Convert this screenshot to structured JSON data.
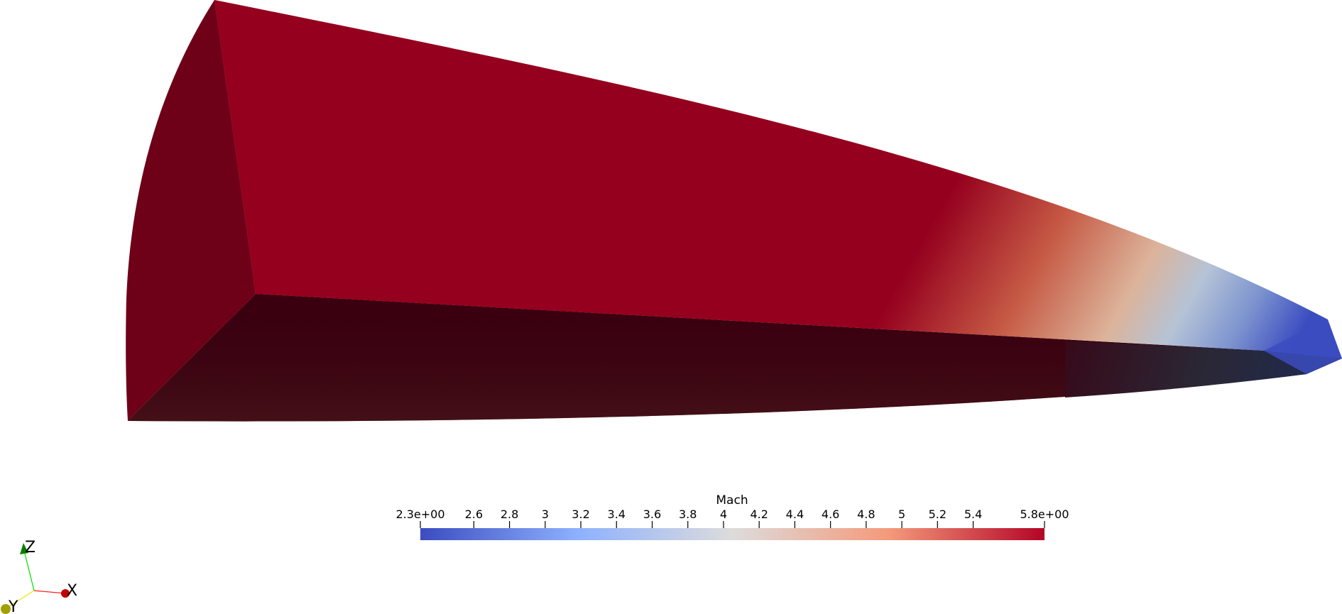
{
  "scalar_bar": {
    "title": "Mach",
    "min": 2.3,
    "max": 5.8,
    "tick_labels": [
      {
        "value": 2.3,
        "label": "2.3e+00"
      },
      {
        "value": 2.6,
        "label": "2.6"
      },
      {
        "value": 2.8,
        "label": "2.8"
      },
      {
        "value": 3.0,
        "label": "3"
      },
      {
        "value": 3.2,
        "label": "3.2"
      },
      {
        "value": 3.4,
        "label": "3.4"
      },
      {
        "value": 3.6,
        "label": "3.6"
      },
      {
        "value": 3.8,
        "label": "3.8"
      },
      {
        "value": 4.0,
        "label": "4"
      },
      {
        "value": 4.2,
        "label": "4.2"
      },
      {
        "value": 4.4,
        "label": "4.4"
      },
      {
        "value": 4.6,
        "label": "4.6"
      },
      {
        "value": 4.8,
        "label": "4.8"
      },
      {
        "value": 5.0,
        "label": "5"
      },
      {
        "value": 5.2,
        "label": "5.2"
      },
      {
        "value": 5.4,
        "label": "5.4"
      },
      {
        "value": 5.8,
        "label": "5.8e+00"
      }
    ],
    "colors": {
      "low": "#3b4cc0",
      "mid": "#dddcdc",
      "high": "#b40426"
    }
  },
  "orientation_axes": {
    "x_label": "X",
    "y_label": "Y",
    "z_label": "Z",
    "x_color": "#e00000",
    "y_color": "#c8c800",
    "z_color": "#00a000"
  },
  "render": {
    "top_face_color": "#95001e",
    "side_face_color": "#6e0018",
    "bottom_face_color": "#3a0010"
  }
}
